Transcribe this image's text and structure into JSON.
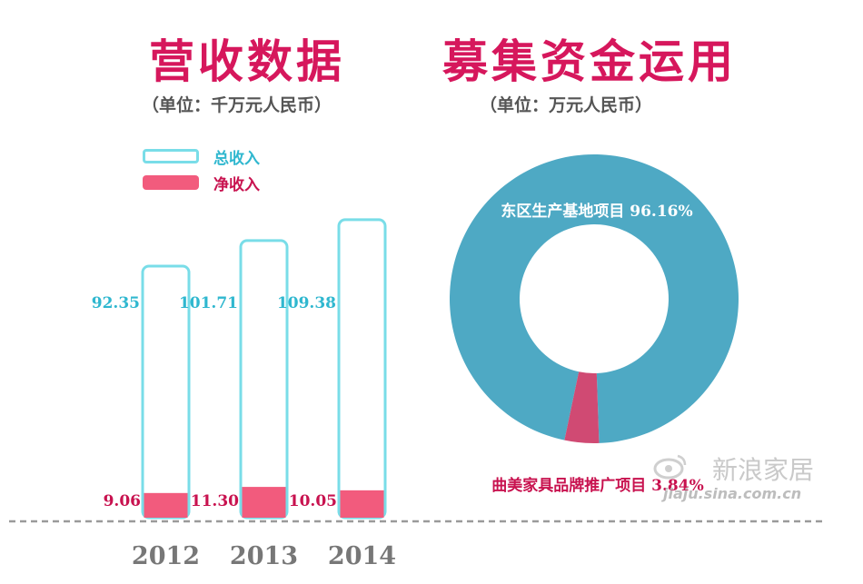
{
  "colors": {
    "accent": "#d6175c",
    "total_outline": "#79dde8",
    "total_text": "#2fb7cf",
    "net_fill": "#f25b7d",
    "net_text": "#c8124f",
    "donut_main": "#4ea9c4",
    "donut_minor": "#d04a73",
    "baseline": "#9a9a9a",
    "year_text": "#777777"
  },
  "left_panel": {
    "title": "营收数据",
    "unit": "（单位：千万元人民币）",
    "legend": [
      {
        "label": "总收入",
        "style": "outline"
      },
      {
        "label": "净收入",
        "style": "fill"
      }
    ]
  },
  "right_panel": {
    "title": "募集资金运用",
    "unit": "（单位：万元人民币）"
  },
  "chart_data": [
    {
      "type": "bar",
      "categories": [
        "2012",
        "2013",
        "2014"
      ],
      "series": [
        {
          "name": "总收入",
          "values": [
            92.35,
            101.71,
            109.38
          ],
          "labels": [
            "92.35",
            "101.71",
            "109.38"
          ]
        },
        {
          "name": "净收入",
          "values": [
            9.06,
            11.3,
            10.05
          ],
          "labels": [
            "9.06",
            "11.30",
            "10.05"
          ]
        }
      ],
      "grid": false,
      "legend_position": "top-left"
    },
    {
      "type": "pie",
      "style": "donut",
      "slices": [
        {
          "label": "东区生产基地项目",
          "value": 96.16,
          "value_label": "96.16%"
        },
        {
          "label": "曲美家具品牌推广项目",
          "value": 3.84,
          "value_label": "3.84%"
        }
      ],
      "legend_position": "none"
    }
  ],
  "watermark": {
    "icon": "sina-eye-logo-icon",
    "name": "新浪家居",
    "url": "jiaju.sina.com.cn"
  }
}
